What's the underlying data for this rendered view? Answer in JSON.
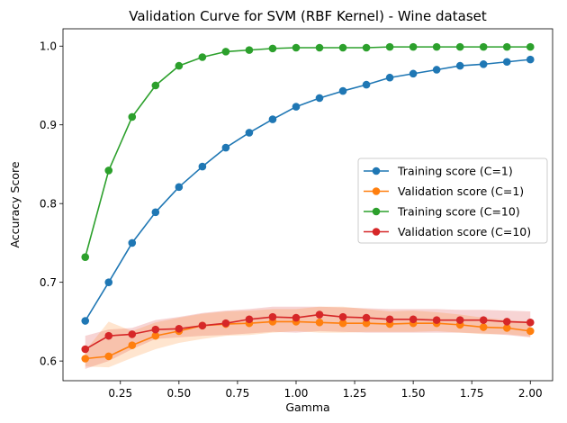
{
  "chart_data": {
    "type": "line",
    "title": "Validation Curve for SVM (RBF Kernel) - Wine dataset",
    "xlabel": "Gamma",
    "ylabel": "Accuracy Score",
    "xlim": [
      0.005,
      2.095
    ],
    "ylim": [
      0.575,
      1.022
    ],
    "x_ticks": [
      0.25,
      0.5,
      0.75,
      1.0,
      1.25,
      1.5,
      1.75,
      2.0
    ],
    "x_tick_labels": [
      "0.25",
      "0.50",
      "0.75",
      "1.00",
      "1.25",
      "1.50",
      "1.75",
      "2.00"
    ],
    "y_ticks": [
      0.6,
      0.7,
      0.8,
      0.9,
      1.0
    ],
    "y_tick_labels": [
      "0.6",
      "0.7",
      "0.8",
      "0.9",
      "1.0"
    ],
    "grid": false,
    "legend_position": "center-right",
    "x": [
      0.1,
      0.2,
      0.3,
      0.4,
      0.5,
      0.6,
      0.7,
      0.8,
      0.9,
      1.0,
      1.1,
      1.2,
      1.3,
      1.4,
      1.5,
      1.6,
      1.7,
      1.8,
      1.9,
      2.0
    ],
    "series": [
      {
        "name": "Training score (C=1)",
        "color": "#1f77b4",
        "values": [
          0.651,
          0.7,
          0.75,
          0.789,
          0.821,
          0.847,
          0.871,
          0.89,
          0.907,
          0.923,
          0.934,
          0.943,
          0.951,
          0.96,
          0.965,
          0.97,
          0.975,
          0.977,
          0.98,
          0.983
        ]
      },
      {
        "name": "Validation score (C=1)",
        "color": "#ff7f0e",
        "values": [
          0.603,
          0.606,
          0.62,
          0.632,
          0.638,
          0.645,
          0.647,
          0.648,
          0.65,
          0.65,
          0.649,
          0.648,
          0.648,
          0.647,
          0.648,
          0.648,
          0.646,
          0.643,
          0.642,
          0.638
        ],
        "band_lower": [
          0.593,
          0.592,
          0.604,
          0.615,
          0.623,
          0.628,
          0.632,
          0.633,
          0.636,
          0.638,
          0.636,
          0.636,
          0.637,
          0.637,
          0.637,
          0.638,
          0.636,
          0.634,
          0.634,
          0.631
        ],
        "band_upper": [
          0.613,
          0.65,
          0.638,
          0.649,
          0.655,
          0.66,
          0.663,
          0.664,
          0.666,
          0.666,
          0.669,
          0.669,
          0.666,
          0.663,
          0.664,
          0.662,
          0.659,
          0.655,
          0.652,
          0.65
        ]
      },
      {
        "name": "Training score (C=10)",
        "color": "#2ca02c",
        "values": [
          0.732,
          0.842,
          0.91,
          0.95,
          0.975,
          0.986,
          0.993,
          0.995,
          0.997,
          0.998,
          0.998,
          0.998,
          0.998,
          0.999,
          0.999,
          0.999,
          0.999,
          0.999,
          0.999,
          0.999
        ]
      },
      {
        "name": "Validation score (C=10)",
        "color": "#d62728",
        "values": [
          0.615,
          0.632,
          0.634,
          0.64,
          0.641,
          0.645,
          0.648,
          0.653,
          0.656,
          0.655,
          0.659,
          0.656,
          0.655,
          0.653,
          0.653,
          0.652,
          0.652,
          0.652,
          0.65,
          0.649
        ],
        "band_lower": [
          0.59,
          0.6,
          0.615,
          0.628,
          0.63,
          0.632,
          0.633,
          0.635,
          0.637,
          0.636,
          0.638,
          0.637,
          0.636,
          0.636,
          0.636,
          0.636,
          0.636,
          0.635,
          0.633,
          0.63
        ],
        "band_upper": [
          0.632,
          0.64,
          0.642,
          0.652,
          0.656,
          0.661,
          0.664,
          0.666,
          0.669,
          0.669,
          0.669,
          0.668,
          0.667,
          0.666,
          0.666,
          0.666,
          0.665,
          0.665,
          0.664,
          0.663
        ]
      }
    ],
    "band_series": [
      "Validation score (C=10)",
      "Validation score (C=1)"
    ]
  }
}
